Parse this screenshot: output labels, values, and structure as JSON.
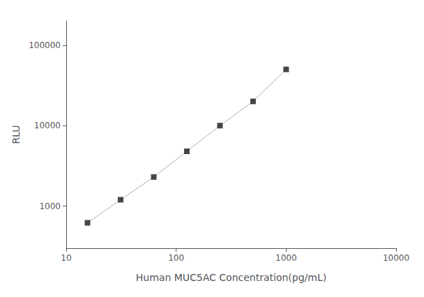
{
  "chart_data": {
    "type": "line",
    "x": [
      15.6,
      31.2,
      62.5,
      125,
      250,
      500,
      1000
    ],
    "series": [
      {
        "type": "line",
        "color": "#b0b0b0",
        "values": [
          620,
          1200,
          2300,
          4800,
          10000,
          20000,
          50000
        ]
      },
      {
        "type": "scatter",
        "color": "#1a1a1a",
        "marker": "square",
        "values": [
          620,
          1200,
          2300,
          4800,
          10000,
          20000,
          50000
        ]
      }
    ],
    "xlabel": "Human MUC5AC Concentration(pg/mL)",
    "ylabel": "RLU",
    "log": true,
    "xlim": [
      10,
      10000
    ],
    "ylim": [
      300,
      200000
    ],
    "xticks": [
      10,
      100,
      1000,
      10000
    ],
    "yticks": [
      1000,
      10000,
      100000
    ],
    "grid": false
  }
}
